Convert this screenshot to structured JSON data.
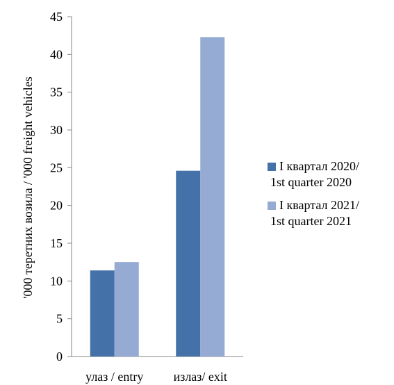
{
  "chart_data": {
    "type": "bar",
    "categories": [
      "улаз / entry",
      "излаз/ exit"
    ],
    "series": [
      {
        "name": [
          "I квартал  2020/",
          "1st quarter 2020"
        ],
        "values": [
          11.4,
          24.6
        ],
        "color": "#4472a8"
      },
      {
        "name": [
          "I квартал  2021/",
          "1st quarter 2021"
        ],
        "values": [
          12.5,
          42.3
        ],
        "color": "#95abd3"
      }
    ],
    "ylabel": "'000 теретних возила / '000 freight vehicles",
    "ylim": [
      0,
      45
    ],
    "yticks": [
      0,
      5,
      10,
      15,
      20,
      25,
      30,
      35,
      40,
      45
    ],
    "grid": false,
    "legend": "right"
  }
}
